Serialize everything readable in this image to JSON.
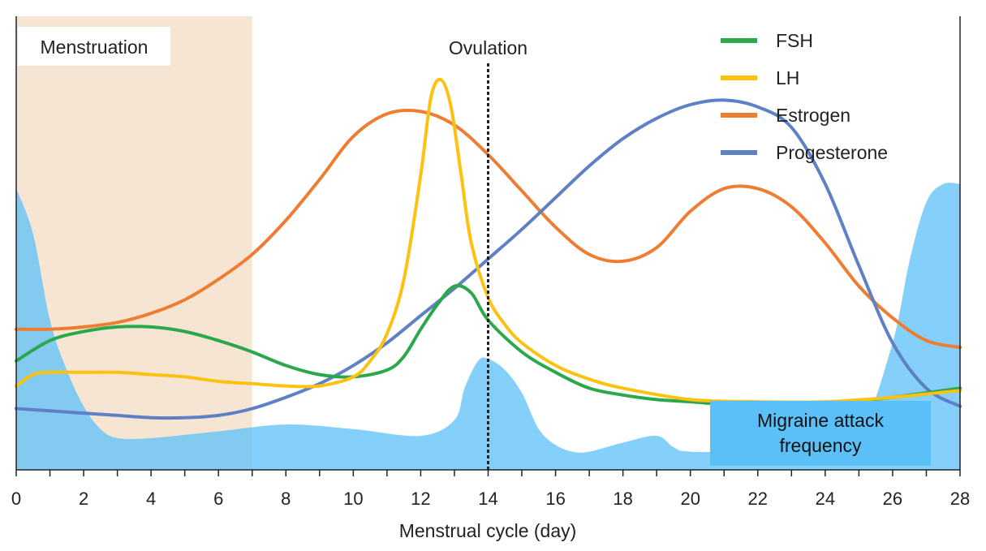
{
  "chart_data": {
    "type": "line",
    "xlabel": "Menstrual cycle (day)",
    "xlim": [
      0,
      28
    ],
    "x_ticks": [
      "0",
      "2",
      "4",
      "6",
      "8",
      "10",
      "12",
      "14",
      "16",
      "18",
      "20",
      "22",
      "24",
      "26",
      "28"
    ],
    "ylim": [
      0,
      100
    ],
    "y_axis_labeled": false,
    "grid": false,
    "legend_position": "top-right",
    "annotations": {
      "menstruation": {
        "label": "Menstruation",
        "x_range": [
          0,
          7
        ],
        "color": "#f7e5d4"
      },
      "ovulation": {
        "label": "Ovulation",
        "x": 14
      },
      "migraine": {
        "label_line1": "Migraine attack",
        "label_line2": "frequency",
        "color": "#5bc0f8"
      }
    },
    "series": [
      {
        "name": "FSH",
        "color": "#2aa84a",
        "x": [
          0,
          1,
          2,
          3,
          4,
          5,
          6,
          7,
          8,
          9,
          10,
          11,
          11.5,
          12,
          12.5,
          13,
          13.5,
          14,
          15,
          16,
          17,
          18,
          19,
          20,
          22,
          24,
          26,
          28
        ],
        "y": [
          24,
          28.5,
          30.5,
          31.5,
          31.5,
          30.5,
          28.5,
          26,
          23,
          21,
          20.5,
          22,
          25,
          31,
          36.5,
          40.5,
          39,
          33,
          26,
          21.5,
          18,
          16.5,
          15.5,
          15,
          14,
          14.5,
          16,
          18
        ]
      },
      {
        "name": "LH",
        "color": "#fbc212",
        "x": [
          0,
          0.5,
          1,
          2,
          3,
          4,
          5,
          6,
          7,
          8,
          9,
          10,
          10.5,
          11,
          11.5,
          12,
          12.3,
          12.6,
          12.9,
          13.2,
          13.5,
          14,
          14.5,
          15,
          16,
          17,
          18,
          20,
          22,
          24,
          26,
          28
        ],
        "y": [
          18.5,
          21,
          21.5,
          21.5,
          21.5,
          21,
          20.5,
          19.5,
          19,
          18.5,
          18.5,
          20.5,
          24,
          30,
          42,
          65,
          82,
          86,
          80,
          65,
          50,
          38,
          32,
          28,
          23,
          20,
          18,
          15.5,
          15,
          15,
          16,
          17.5
        ]
      },
      {
        "name": "Estrogen",
        "color": "#ee7d31",
        "x": [
          0,
          1,
          2,
          3,
          4,
          5,
          6,
          7,
          8,
          9,
          10,
          11,
          12,
          13,
          14,
          15,
          16,
          17,
          18,
          19,
          20,
          21,
          22,
          23,
          24,
          25,
          26,
          27,
          28
        ],
        "y": [
          31,
          31,
          31.5,
          32.5,
          34.5,
          37.5,
          42,
          47.5,
          55,
          64,
          73.5,
          78.5,
          79,
          76,
          69.5,
          61.5,
          53.5,
          47.5,
          46,
          49,
          57,
          62,
          62,
          58,
          50,
          40.5,
          33.5,
          28.5,
          27
        ]
      },
      {
        "name": "Progesterone",
        "color": "#5e80c4",
        "x": [
          0,
          1,
          2,
          3,
          4,
          5,
          6,
          7,
          8,
          9,
          10,
          11,
          12,
          13,
          14,
          15,
          16,
          17,
          18,
          19,
          20,
          21,
          22,
          23,
          24,
          25,
          26,
          27,
          28
        ],
        "y": [
          13.5,
          13,
          12.5,
          12,
          11.5,
          11.5,
          12,
          13.5,
          16,
          19,
          23,
          28,
          34,
          40,
          46.5,
          53,
          60,
          67,
          73,
          77.5,
          80.5,
          81.5,
          80,
          75.5,
          63,
          45,
          28,
          18,
          14
        ]
      }
    ],
    "migraine_frequency": {
      "x": [
        0,
        0.5,
        1,
        1.5,
        2,
        2.5,
        3,
        4,
        6,
        8,
        10,
        12,
        13,
        13.3,
        13.7,
        14,
        14.5,
        15,
        15.5,
        16,
        16.5,
        17,
        18,
        19,
        19.5,
        20,
        22,
        24,
        25,
        26,
        26.5,
        27,
        27.5,
        28
      ],
      "y": [
        62,
        52,
        33,
        22,
        14,
        9,
        7,
        7,
        8.5,
        10,
        9,
        7.5,
        11,
        18,
        24,
        24.5,
        22,
        17,
        9,
        5.5,
        4,
        4,
        6,
        7.5,
        5,
        4,
        4,
        4,
        7,
        28,
        46,
        59,
        63,
        63
      ]
    }
  }
}
